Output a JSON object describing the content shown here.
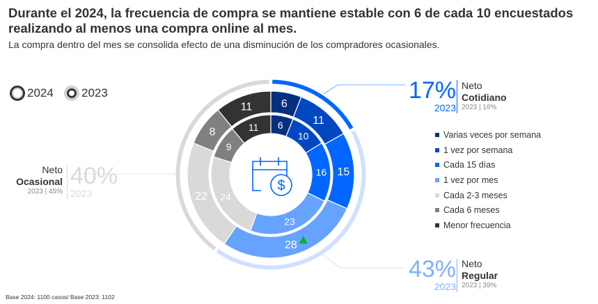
{
  "title": "Durante el 2024, la frecuencia de compra se mantiene estable con 6 de cada 10 encuestados realizando al menos una compra online al mes.",
  "subtitle": "La compra dentro del mes se consolida efecto de una disminución de los compradores ocasionales.",
  "year_legend": [
    {
      "label": "2024"
    },
    {
      "label": "2023"
    }
  ],
  "source": "Base 2024: 1100 casos/ Base 2023: 1102",
  "callouts": {
    "cotidiano": {
      "value": "17%",
      "year": "2023",
      "neto": "Neto",
      "name": "Cotidiano",
      "prev": "2023 | 16%",
      "color": "#0066ff"
    },
    "regular": {
      "value": "43%",
      "year": "2023",
      "neto": "Neto",
      "name": "Regular",
      "prev": "2023 | 39%",
      "color": "#80b0ff"
    },
    "ocasional": {
      "value": "40%",
      "year": "2023",
      "neto": "Neto",
      "name": "Ocasional",
      "prev": "2023 | 45%",
      "color": "#d9d9d9"
    }
  },
  "chart_data": {
    "type": "donut",
    "title": "Durante el 2024, la frecuencia de compra se mantiene estable con 6 de cada 10 encuestados realizando al menos una compra online al mes.",
    "categories": [
      "Varias veces por semana",
      "1 vez por semana",
      "Cada 15 días",
      "1 vez por mes",
      "Cada 2-3 meses",
      "Cada 6 meses",
      "Menor frecuencia"
    ],
    "colors": [
      "#062f80",
      "#0047c2",
      "#0066ff",
      "#66a3ff",
      "#d9d9d9",
      "#808080",
      "#333333"
    ],
    "series": [
      {
        "name": "2024",
        "values": [
          6,
          11,
          15,
          28,
          22,
          8,
          11
        ]
      },
      {
        "name": "2023",
        "values": [
          6,
          10,
          16,
          23,
          24,
          9,
          11
        ]
      }
    ],
    "groups": [
      {
        "name": "Cotidiano",
        "value_2024": 17,
        "value_2023": 16,
        "color": "#0066ff"
      },
      {
        "name": "Regular",
        "value_2024": 43,
        "value_2023": 39,
        "color": "#cfe0ff"
      },
      {
        "name": "Ocasional",
        "value_2024": 40,
        "value_2023": 45,
        "color": "#d9d9d9"
      }
    ],
    "annotations": [
      {
        "category": "1 vez por mes",
        "series": "2024",
        "marker": "green-up-triangle",
        "color": "#00b32c"
      }
    ],
    "legend": "right"
  }
}
